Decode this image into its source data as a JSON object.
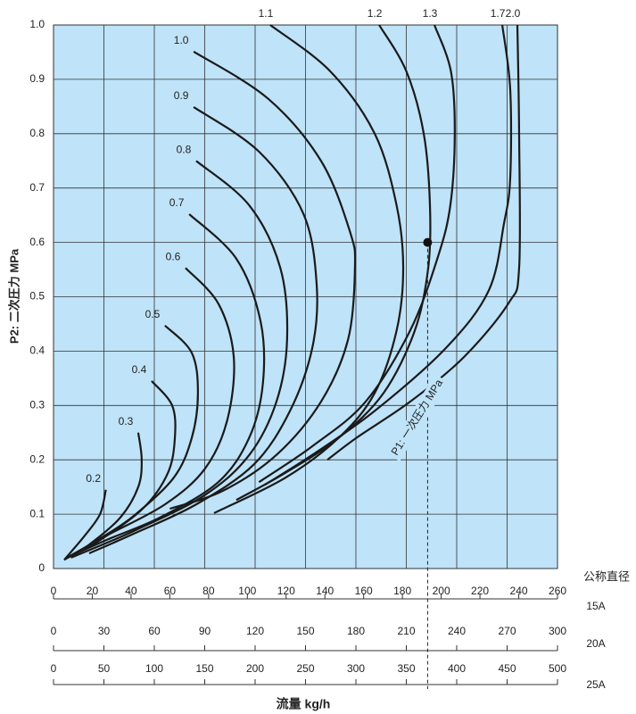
{
  "chart_data": {
    "type": "line",
    "y_label": "P2: 二次圧力 MPa",
    "x_label": "流量 kg/h",
    "series_title": "P1: 一次圧力 MPa",
    "size_title": "公称直径",
    "x_size_label": "15A",
    "xlim": [
      0,
      260
    ],
    "xticks": [
      0,
      20,
      40,
      60,
      80,
      100,
      120,
      140,
      160,
      180,
      200,
      220,
      240,
      260
    ],
    "ylim": [
      0,
      1.0
    ],
    "yticks": [
      0,
      0.1,
      0.2,
      0.3,
      0.4,
      0.5,
      0.6,
      0.7,
      0.8,
      0.9,
      {
        "value": 1.0,
        "label": "1.0"
      }
    ],
    "secondary_x_axes": [
      {
        "label": "20A",
        "xlim": [
          0,
          300
        ],
        "xticks": [
          0,
          30,
          60,
          90,
          120,
          150,
          180,
          210,
          240,
          270,
          300
        ]
      },
      {
        "label": "25A",
        "xlim": [
          0,
          500
        ],
        "xticks": [
          0,
          50,
          100,
          150,
          200,
          250,
          300,
          350,
          400,
          450,
          500
        ]
      }
    ],
    "grid": true,
    "grid_columns": 10,
    "background": "#bfe3f8",
    "color": "#1a1a1a",
    "marker": {
      "x": 193,
      "y": 0.6
    },
    "series": [
      {
        "name": "0.2",
        "x": [
          27,
          24,
          16,
          5.5
        ],
        "values": [
          0.145,
          0.1,
          0.06,
          0.016
        ]
      },
      {
        "name": "0.3",
        "x": [
          43.7,
          45.5,
          43.7,
          34.5,
          18.4,
          5.5
        ],
        "values": [
          0.25,
          0.2,
          0.15,
          0.094,
          0.044,
          0.016
        ]
      },
      {
        "name": "0.4",
        "x": [
          50.6,
          61.2,
          62.6,
          58.9,
          46,
          23,
          7
        ],
        "values": [
          0.345,
          0.3,
          0.24,
          0.175,
          0.11,
          0.05,
          0.02
        ]
      },
      {
        "name": "0.5",
        "x": [
          57.5,
          71.3,
          74.5,
          71.3,
          62,
          41.4,
          23,
          7
        ],
        "values": [
          0.447,
          0.397,
          0.323,
          0.24,
          0.167,
          0.097,
          0.053,
          0.02
        ]
      },
      {
        "name": "0.6",
        "x": [
          68.1,
          85.1,
          93,
          89.7,
          78.2,
          57.5,
          27.6,
          7
        ],
        "values": [
          0.553,
          0.487,
          0.389,
          0.274,
          0.184,
          0.118,
          0.061,
          0.02
        ]
      },
      {
        "name": "0.7",
        "x": [
          70,
          94.3,
          106.8,
          108,
          101,
          85,
          55,
          27.6,
          7
        ],
        "values": [
          0.652,
          0.57,
          0.455,
          0.34,
          0.241,
          0.159,
          0.094,
          0.053,
          0.02
        ]
      },
      {
        "name": "0.8",
        "x": [
          73.6,
          101,
          117,
          120.5,
          115,
          101,
          78,
          41.4,
          9
        ],
        "values": [
          0.75,
          0.668,
          0.553,
          0.422,
          0.307,
          0.209,
          0.135,
          0.069,
          0.02
        ]
      },
      {
        "name": "0.9",
        "x": [
          72.3,
          106,
          129,
          135.8,
          133.5,
          122,
          103.5,
          73.6,
          41.4,
          18.4
        ],
        "values": [
          0.849,
          0.767,
          0.652,
          0.52,
          0.406,
          0.29,
          0.192,
          0.118,
          0.064,
          0.028
        ]
      },
      {
        "name": "1.0",
        "x": [
          72.3,
          110.5,
          138,
          153,
          155.5,
          152,
          138,
          115,
          87.4,
          60
        ],
        "values": [
          0.951,
          0.865,
          0.75,
          0.619,
          0.553,
          0.422,
          0.307,
          0.209,
          0.143,
          0.11
        ]
      },
      {
        "name": "1.1",
        "x": [
          111.8,
          142.7,
          165.7,
          177,
          180.4,
          177,
          165.7,
          147.3,
          119.6,
          82.8
        ],
        "values": [
          1.0,
          0.915,
          0.8,
          0.668,
          0.553,
          0.438,
          0.323,
          0.241,
          0.167,
          0.102
        ]
      },
      {
        "name": "1.2",
        "x": [
          168,
          182,
          191,
          194.2,
          193.3,
          186.4,
          170.3,
          147.3,
          119.6,
          94.3
        ],
        "values": [
          1.0,
          0.915,
          0.8,
          0.668,
          0.553,
          0.438,
          0.323,
          0.241,
          0.176,
          0.126
        ]
      },
      {
        "name": "1.3",
        "x": [
          196.5,
          205,
          207,
          204.7,
          198,
          184,
          161,
          133.5,
          106
        ],
        "values": [
          1.0,
          0.915,
          0.8,
          0.668,
          0.57,
          0.438,
          0.307,
          0.225,
          0.159
        ]
      },
      {
        "name": "1.7",
        "x": [
          231.5,
          235.6,
          235.6,
          232.4,
          224.6,
          202.5,
          165.7,
          133.5,
          109
        ],
        "values": [
          1.0,
          0.882,
          0.718,
          0.635,
          0.512,
          0.406,
          0.29,
          0.209,
          0.154
        ]
      },
      {
        "name": "2.0",
        "x": [
          239.3,
          240.2,
          240.2,
          234.7,
          211.7,
          184,
          156.5,
          141.3
        ],
        "values": [
          1.0,
          0.8,
          0.553,
          0.488,
          0.389,
          0.307,
          0.241,
          0.2
        ]
      }
    ]
  }
}
